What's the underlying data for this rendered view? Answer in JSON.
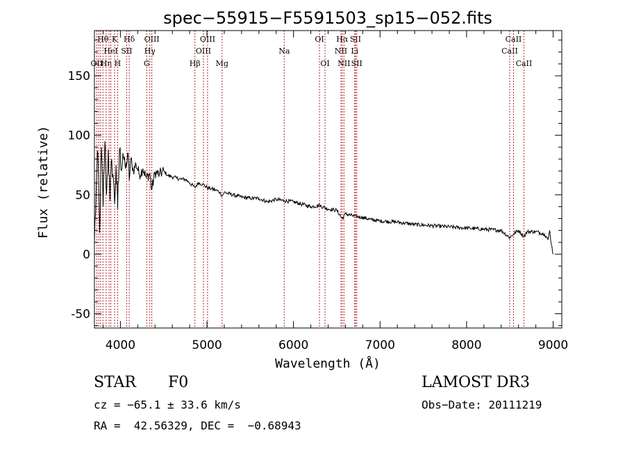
{
  "chart_data": {
    "type": "line",
    "title": "spec−55915−F5591503_sp15−052.fits",
    "xlabel": "Wavelength (Å)",
    "ylabel": "Flux (relative)",
    "xlim": [
      3700,
      9100
    ],
    "ylim": [
      -62,
      188
    ],
    "xticks": [
      4000,
      5000,
      6000,
      7000,
      8000,
      9000
    ],
    "yticks": [
      -50,
      0,
      50,
      100,
      150
    ],
    "grid": false,
    "line_color": "#000000",
    "marker_color": "#b22222",
    "spectrum": {
      "name": "flux",
      "x": [
        3700,
        3720,
        3740,
        3760,
        3780,
        3800,
        3820,
        3840,
        3860,
        3880,
        3900,
        3920,
        3933,
        3950,
        3968,
        3990,
        4010,
        4030,
        4060,
        4090,
        4102,
        4120,
        4150,
        4180,
        4220,
        4260,
        4300,
        4340,
        4361,
        4400,
        4450,
        4500,
        4550,
        4600,
        4650,
        4700,
        4750,
        4800,
        4861,
        4900,
        4950,
        5000,
        5050,
        5100,
        5150,
        5175,
        5200,
        5300,
        5400,
        5500,
        5600,
        5700,
        5800,
        5893,
        6000,
        6100,
        6200,
        6300,
        6400,
        6500,
        6563,
        6600,
        6700,
        6800,
        6900,
        7000,
        7200,
        7400,
        7600,
        7800,
        8000,
        8200,
        8400,
        8498,
        8542,
        8600,
        8662,
        8700,
        8800,
        8900,
        8940,
        8960,
        8980,
        9000
      ],
      "y": [
        10,
        55,
        85,
        18,
        90,
        40,
        95,
        50,
        88,
        45,
        80,
        62,
        42,
        75,
        38,
        88,
        70,
        85,
        72,
        84,
        62,
        80,
        70,
        76,
        67,
        72,
        64,
        68,
        54,
        69,
        67,
        70,
        66,
        65,
        64,
        63,
        63,
        60,
        56,
        60,
        59,
        56,
        55,
        54,
        52,
        49,
        52,
        50,
        48,
        47,
        47,
        44,
        46,
        45,
        44,
        42,
        40,
        41,
        38,
        37,
        30,
        34,
        32,
        31,
        29,
        28,
        27,
        25,
        24,
        23,
        22,
        21,
        20,
        14,
        17,
        20,
        15,
        19,
        19,
        17,
        12,
        20,
        8,
        0
      ]
    },
    "lines": [
      {
        "x": 3727,
        "label": "OII",
        "row": 2
      },
      {
        "x": 3750,
        "label": "",
        "row": 0
      },
      {
        "x": 3771,
        "label": "",
        "row": 0
      },
      {
        "x": 3798,
        "label": "Hθ",
        "row": 0
      },
      {
        "x": 3835,
        "label": "Hη",
        "row": 2
      },
      {
        "x": 3869,
        "label": "",
        "row": 0
      },
      {
        "x": 3889,
        "label": "HeI",
        "row": 1
      },
      {
        "x": 3933,
        "label": "K",
        "row": 0
      },
      {
        "x": 3968,
        "label": "H",
        "row": 2
      },
      {
        "x": 4072,
        "label": "SII",
        "row": 1
      },
      {
        "x": 4102,
        "label": "Hδ",
        "row": 0
      },
      {
        "x": 4304,
        "label": "G",
        "row": 2
      },
      {
        "x": 4340,
        "label": "Hγ",
        "row": 1
      },
      {
        "x": 4363,
        "label": "OIII",
        "row": 0
      },
      {
        "x": 4861,
        "label": "Hβ",
        "row": 2
      },
      {
        "x": 4959,
        "label": "OIII",
        "row": 1
      },
      {
        "x": 5007,
        "label": "OIII",
        "row": 0
      },
      {
        "x": 5175,
        "label": "Mg",
        "row": 2
      },
      {
        "x": 5893,
        "label": "Na",
        "row": 1
      },
      {
        "x": 6300,
        "label": "OI",
        "row": 0
      },
      {
        "x": 6364,
        "label": "OI",
        "row": 2
      },
      {
        "x": 6548,
        "label": "NII",
        "row": 1
      },
      {
        "x": 6563,
        "label": "Hα",
        "row": 0
      },
      {
        "x": 6583,
        "label": "NII",
        "row": 2
      },
      {
        "x": 6707,
        "label": "Li",
        "row": 1
      },
      {
        "x": 6716,
        "label": "SII",
        "row": 0
      },
      {
        "x": 6731,
        "label": "SII",
        "row": 2
      },
      {
        "x": 8498,
        "label": "CaII",
        "row": 1
      },
      {
        "x": 8542,
        "label": "CaII",
        "row": 0
      },
      {
        "x": 8662,
        "label": "CaII",
        "row": 2
      }
    ]
  },
  "info": {
    "object_class": "STAR",
    "subclass": "F0",
    "survey": "LAMOST DR3",
    "cz": "cz = −65.1 ± 33.6 km/s",
    "obs_date": "Obs−Date: 20111219",
    "coords": "RA =  42.56329, DEC =  −0.68943"
  }
}
